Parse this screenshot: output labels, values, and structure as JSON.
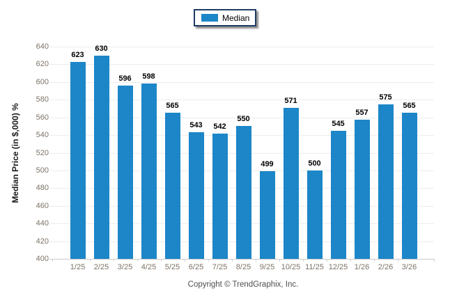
{
  "legend": {
    "items": [
      {
        "label": "Median",
        "color": "#1c86c8"
      }
    ]
  },
  "chart_data": {
    "type": "bar",
    "title": "",
    "categories": [
      "1/25",
      "2/25",
      "3/25",
      "4/25",
      "5/25",
      "6/25",
      "7/25",
      "8/25",
      "9/25",
      "10/25",
      "11/25",
      "12/25",
      "1/26",
      "2/26",
      "3/26"
    ],
    "series": [
      {
        "name": "Median",
        "color": "#1c86c8",
        "values": [
          623,
          630,
          596,
          598,
          565,
          543,
          542,
          550,
          499,
          571,
          500,
          545,
          557,
          575,
          565
        ]
      }
    ],
    "value_labels": [
      623,
      630,
      596,
      598,
      565,
      543,
      542,
      550,
      499,
      571,
      500,
      545,
      557,
      575,
      565
    ],
    "xlabel": "",
    "ylabel": "Median Price (in $,000) %",
    "ylim": [
      400,
      640
    ],
    "ytick_step": 20,
    "yticks": [
      400,
      420,
      440,
      460,
      480,
      500,
      520,
      540,
      560,
      580,
      600,
      620,
      640
    ],
    "grid": true,
    "legend_position": "top-center"
  },
  "footer": {
    "copyright": "Copyright © TrendGraphix, Inc."
  },
  "colors": {
    "bar": "#1c86c8",
    "legend_border": "#1e3c64",
    "grid": "#ececec",
    "axis_line": "#c9c9c9",
    "tick_label": "#7c7267",
    "value_label": "#000000"
  }
}
